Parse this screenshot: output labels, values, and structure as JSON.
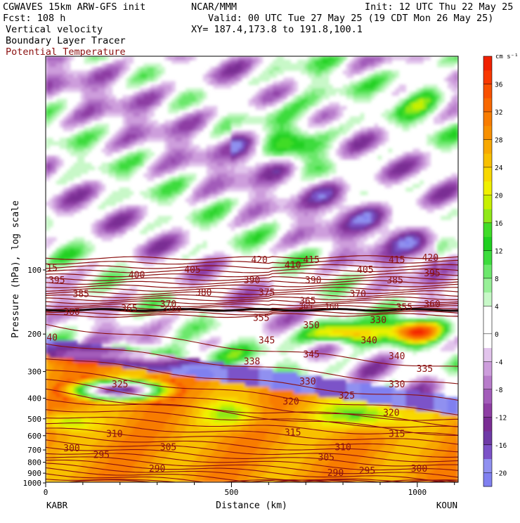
{
  "header": {
    "left": [
      "CGWAVES 15km ARW-GFS init",
      "Fcst:  108 h"
    ],
    "center": [
      "NCAR/MMM",
      "Valid: 00 UTC Tue 27 May 25 (19 CDT Mon 26 May 25)"
    ],
    "init": "Init: 12 UTC Thu 22 May 25",
    "xy": "XY= 187.4,173.8 to 191.8,100.1",
    "fields": [
      {
        "label": "Vertical velocity",
        "color": "#000000"
      },
      {
        "label": "Boundary Layer Tracer",
        "color": "#000000"
      },
      {
        "label": "Potential Temperature",
        "color": "#8b1010"
      }
    ]
  },
  "chart_data": {
    "type": "heatmap",
    "title": "Vertical velocity",
    "xlabel": "Distance (km)",
    "ylabel": "Pressure (hPa), log scale",
    "x_ticks": [
      0,
      500,
      1000
    ],
    "xlim": [
      0,
      1110
    ],
    "y_ticks": [
      100,
      200,
      300,
      400,
      500,
      600,
      700,
      800,
      900,
      1000
    ],
    "ylim": [
      1000,
      20
    ],
    "y_scale": "log",
    "endpoints": {
      "left": "KABR",
      "right": "KOUN"
    },
    "colorbar": {
      "unit": "cm s⁻¹",
      "ticks": [
        36,
        32,
        28,
        24,
        20,
        16,
        12,
        8,
        4,
        0,
        -4,
        -8,
        -12,
        -16,
        -20
      ],
      "range": [
        -22,
        40
      ],
      "colors": [
        {
          "v": -22,
          "c": "#8080f0"
        },
        {
          "v": -20,
          "c": "#9090f0"
        },
        {
          "v": -18,
          "c": "#7c52c8"
        },
        {
          "v": -16,
          "c": "#6e3aa6"
        },
        {
          "v": -14,
          "c": "#7a2d94"
        },
        {
          "v": -12,
          "c": "#8e3ea4"
        },
        {
          "v": -10,
          "c": "#a35cba"
        },
        {
          "v": -8,
          "c": "#b87ccb"
        },
        {
          "v": -6,
          "c": "#cd9ddc"
        },
        {
          "v": -4,
          "c": "#e2c4ec"
        },
        {
          "v": -2,
          "c": "#ffffff"
        },
        {
          "v": 2,
          "c": "#ffffff"
        },
        {
          "v": 4,
          "c": "#c8f8c8"
        },
        {
          "v": 6,
          "c": "#98f098"
        },
        {
          "v": 8,
          "c": "#6ce86c"
        },
        {
          "v": 10,
          "c": "#3cdc3c"
        },
        {
          "v": 12,
          "c": "#20d020"
        },
        {
          "v": 14,
          "c": "#40dc28"
        },
        {
          "v": 16,
          "c": "#90e818"
        },
        {
          "v": 18,
          "c": "#c8f000"
        },
        {
          "v": 20,
          "c": "#f0f000"
        },
        {
          "v": 22,
          "c": "#f8d800"
        },
        {
          "v": 24,
          "c": "#f8c000"
        },
        {
          "v": 26,
          "c": "#f8a800"
        },
        {
          "v": 28,
          "c": "#f89000"
        },
        {
          "v": 30,
          "c": "#f87c00"
        },
        {
          "v": 32,
          "c": "#f86800"
        },
        {
          "v": 34,
          "c": "#f85000"
        },
        {
          "v": 36,
          "c": "#f83800"
        },
        {
          "v": 38,
          "c": "#f02000"
        },
        {
          "v": 40,
          "c": "#e00000"
        }
      ]
    },
    "isentrope_color": "#8b1010",
    "isentrope_labels": [
      {
        "value": 415,
        "x": 10,
        "p": 98
      },
      {
        "value": 395,
        "x": 30,
        "p": 112
      },
      {
        "value": 385,
        "x": 95,
        "p": 130
      },
      {
        "value": 360,
        "x": 70,
        "p": 158
      },
      {
        "value": 365,
        "x": 225,
        "p": 152
      },
      {
        "value": 340,
        "x": 10,
        "p": 208
      },
      {
        "value": 400,
        "x": 245,
        "p": 106
      },
      {
        "value": 405,
        "x": 395,
        "p": 100
      },
      {
        "value": 370,
        "x": 330,
        "p": 145
      },
      {
        "value": 380,
        "x": 425,
        "p": 128
      },
      {
        "value": 420,
        "x": 575,
        "p": 90
      },
      {
        "value": 410,
        "x": 665,
        "p": 95
      },
      {
        "value": 390,
        "x": 555,
        "p": 112
      },
      {
        "value": 375,
        "x": 595,
        "p": 128
      },
      {
        "value": 365,
        "x": 705,
        "p": 140
      },
      {
        "value": 415,
        "x": 715,
        "p": 90
      },
      {
        "value": 390,
        "x": 720,
        "p": 112
      },
      {
        "value": 355,
        "x": 580,
        "p": 168
      },
      {
        "value": 350,
        "x": 715,
        "p": 182
      },
      {
        "value": 345,
        "x": 595,
        "p": 215
      },
      {
        "value": 330,
        "x": 895,
        "p": 172
      },
      {
        "value": 405,
        "x": 860,
        "p": 100
      },
      {
        "value": 370,
        "x": 840,
        "p": 130
      },
      {
        "value": 385,
        "x": 940,
        "p": 112
      },
      {
        "value": 415,
        "x": 945,
        "p": 90
      },
      {
        "value": 420,
        "x": 1035,
        "p": 88
      },
      {
        "value": 395,
        "x": 1040,
        "p": 104
      },
      {
        "value": 355,
        "x": 965,
        "p": 150
      },
      {
        "value": 360,
        "x": 1040,
        "p": 145
      },
      {
        "value": 340,
        "x": 870,
        "p": 215
      },
      {
        "value": 340,
        "x": 945,
        "p": 255
      },
      {
        "value": 335,
        "x": 1020,
        "p": 292
      },
      {
        "value": 330,
        "x": 945,
        "p": 345
      },
      {
        "value": 338,
        "x": 555,
        "p": 270
      },
      {
        "value": 330,
        "x": 705,
        "p": 335
      },
      {
        "value": 345,
        "x": 715,
        "p": 250
      },
      {
        "value": 325,
        "x": 200,
        "p": 345
      },
      {
        "value": 320,
        "x": 660,
        "p": 415
      },
      {
        "value": 325,
        "x": 810,
        "p": 390
      },
      {
        "value": 320,
        "x": 930,
        "p": 470
      },
      {
        "value": 315,
        "x": 665,
        "p": 580
      },
      {
        "value": 315,
        "x": 945,
        "p": 590
      },
      {
        "value": 310,
        "x": 185,
        "p": 590
      },
      {
        "value": 310,
        "x": 800,
        "p": 680
      },
      {
        "value": 305,
        "x": 330,
        "p": 680
      },
      {
        "value": 305,
        "x": 755,
        "p": 760
      },
      {
        "value": 300,
        "x": 70,
        "p": 690
      },
      {
        "value": 300,
        "x": 1005,
        "p": 860
      },
      {
        "value": 295,
        "x": 150,
        "p": 740
      },
      {
        "value": 295,
        "x": 865,
        "p": 880
      },
      {
        "value": 290,
        "x": 300,
        "p": 860
      },
      {
        "value": 290,
        "x": 780,
        "p": 900
      }
    ],
    "tracer_labels": [
      {
        "value": "3760",
        "x": 340,
        "p": 152
      },
      {
        "value": "365",
        "x": 700,
        "p": 148
      },
      {
        "value": "160",
        "x": 770,
        "p": 148
      }
    ]
  }
}
